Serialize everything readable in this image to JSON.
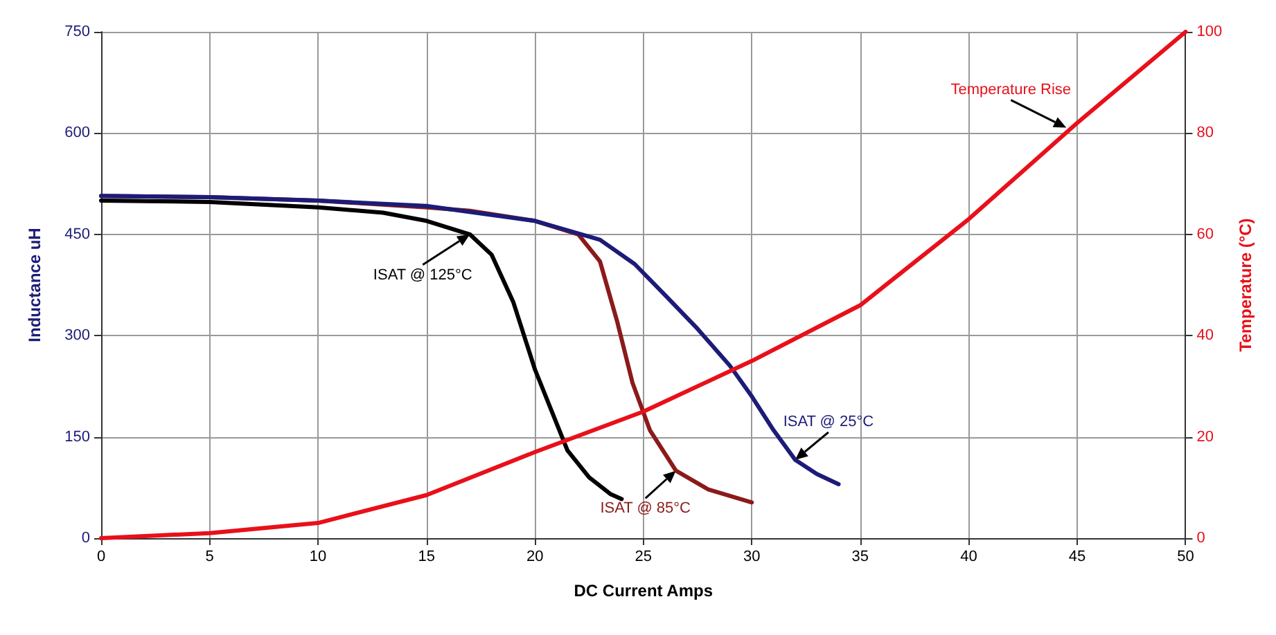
{
  "chart_data": {
    "type": "line",
    "xlabel": "DC Current Amps",
    "ylabel": "Inductance uH",
    "y2label": "Temperature (°C)",
    "xlim": [
      0,
      50
    ],
    "xticks": [
      0,
      5,
      10,
      15,
      20,
      25,
      30,
      35,
      40,
      45,
      50
    ],
    "ylim": [
      0,
      750
    ],
    "yticks": [
      0,
      150,
      300,
      450,
      600,
      750
    ],
    "y2lim": [
      0,
      100
    ],
    "y2ticks": [
      0,
      20,
      40,
      60,
      80,
      100
    ],
    "grid": true,
    "marker": "none",
    "line_style": "solid",
    "series": [
      {
        "color": "#000000",
        "x": [
          0,
          5,
          10,
          13,
          15,
          17,
          18,
          19,
          20,
          21,
          21.5,
          22.5,
          23.5,
          24
        ],
        "values": [
          500,
          498,
          490,
          482,
          470,
          450,
          420,
          350,
          250,
          170,
          130,
          90,
          65,
          58
        ]
      },
      {
        "color": "#8b1a1a",
        "x": [
          0,
          5,
          10,
          15,
          17,
          20,
          22,
          23,
          23.8,
          24.5,
          25.3,
          26.5,
          28,
          30
        ],
        "values": [
          507,
          505,
          500,
          490,
          485,
          470,
          450,
          410,
          320,
          230,
          160,
          100,
          72,
          53
        ]
      },
      {
        "color": "#1c1c78",
        "x": [
          0,
          5,
          10,
          15,
          20,
          23,
          24.6,
          26,
          27.5,
          29,
          30,
          31,
          32,
          33,
          34
        ],
        "values": [
          507,
          505,
          500,
          492,
          470,
          442,
          406,
          360,
          310,
          255,
          210,
          160,
          116,
          95,
          80
        ]
      },
      {
        "color": "#e8101a",
        "axis": "y2",
        "x": [
          0,
          5,
          10,
          15,
          20,
          25,
          30,
          35,
          40,
          45,
          50
        ],
        "values": [
          0,
          1,
          3,
          8.5,
          17,
          25,
          35,
          46,
          63,
          82,
          100
        ]
      }
    ],
    "annotations": [
      {
        "text": "ISAT @ 125°C",
        "x": 17,
        "y": 450
      },
      {
        "text": "ISAT @ 85°C",
        "x": 26.5,
        "y": 100
      },
      {
        "text": "ISAT @ 25°C",
        "x": 32,
        "y": 116
      },
      {
        "text": "Temperature Rise",
        "x": 44.5,
        "y": 608
      }
    ]
  }
}
